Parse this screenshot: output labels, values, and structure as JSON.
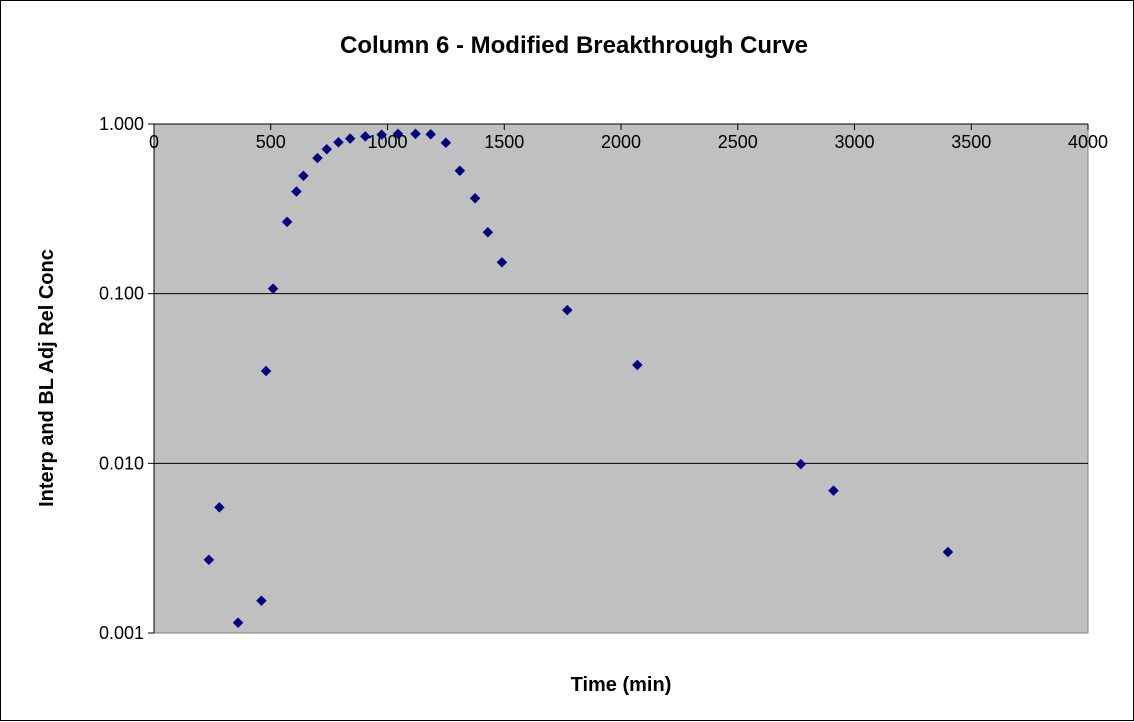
{
  "chart_data": {
    "type": "scatter",
    "title": "Column 6 - Modified Breakthrough Curve",
    "xlabel": "Time (min)",
    "ylabel": "Interp and BL Adj Rel Conc",
    "xlim": [
      0,
      4000
    ],
    "ylim": [
      0.001,
      1
    ],
    "y_scale": "log",
    "x_ticks": [
      "0",
      "500",
      "1000",
      "1500",
      "2000",
      "2500",
      "3000",
      "3500",
      "4000"
    ],
    "y_ticks": [
      "0.001",
      "0.010",
      "0.100",
      "1.000"
    ],
    "grid": "horizontal",
    "legend": "none",
    "colors": {
      "plot_area": "#c0c0c0",
      "marker": "#000080",
      "grid": "#000000"
    },
    "series": [
      {
        "marker": "diamond",
        "x": [
          235,
          280,
          360,
          460,
          480,
          510,
          570,
          610,
          640,
          700,
          740,
          790,
          840,
          905,
          975,
          1045,
          1120,
          1185,
          1250,
          1310,
          1375,
          1430,
          1490,
          1770,
          2070,
          2770,
          2910,
          3400
        ],
        "y": [
          0.0027,
          0.0055,
          0.00115,
          0.00155,
          0.035,
          0.107,
          0.265,
          0.4,
          0.495,
          0.63,
          0.71,
          0.78,
          0.82,
          0.845,
          0.865,
          0.875,
          0.875,
          0.87,
          0.775,
          0.53,
          0.365,
          0.23,
          0.153,
          0.08,
          0.038,
          0.0099,
          0.0069,
          0.003
        ]
      }
    ]
  }
}
